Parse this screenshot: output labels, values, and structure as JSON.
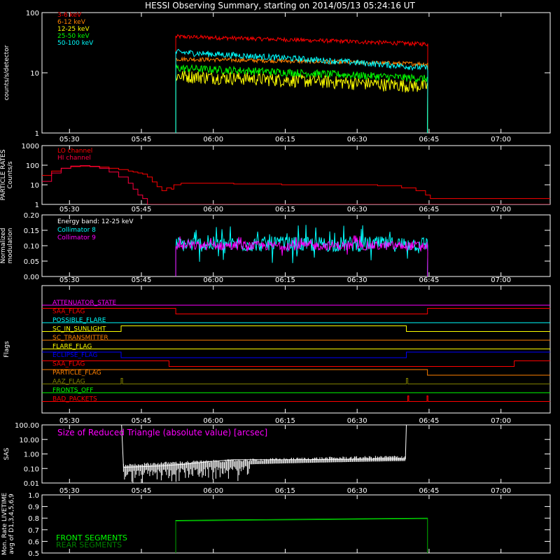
{
  "title": "HESSI Observing Summary, starting on 2014/05/13 05:24:16 UT",
  "time_ticks": [
    "05:30",
    "05:45",
    "06:00",
    "06:15",
    "06:30",
    "06:45",
    "07:00"
  ],
  "time_tick_minutes": [
    5.733,
    20.733,
    35.733,
    50.733,
    65.733,
    80.733,
    95.733
  ],
  "chart_data": [
    {
      "id": "count-rates",
      "type": "line",
      "ylabel": "counts/s/detector",
      "yscale": "log",
      "ylim": [
        1,
        100
      ],
      "ytick_labels": [
        "1",
        "10",
        "100"
      ],
      "xlim_minutes": [
        0,
        106
      ],
      "data_start_minute": 27.9,
      "data_end_minute": 80.4,
      "series": [
        {
          "name": "3-6 keV",
          "color": "#ff0000",
          "level_start": 40,
          "level_end": 30,
          "noise": 0.08
        },
        {
          "name": "6-12 keV",
          "color": "#ff8000",
          "level_start": 17,
          "level_end": 14,
          "noise": 0.08
        },
        {
          "name": "12-25 keV",
          "color": "#ffff00",
          "level_start": 9,
          "level_end": 6,
          "noise": 0.25
        },
        {
          "name": "25-50 keV",
          "color": "#00ff00",
          "level_start": 12,
          "level_end": 8,
          "noise": 0.15
        },
        {
          "name": "50-100 keV",
          "color": "#00ffff",
          "level_start": 22,
          "level_end": 12,
          "noise": 0.12
        }
      ]
    },
    {
      "id": "particle-rates",
      "type": "line",
      "ylabel": "PARTICLE RATES Counts/s",
      "yscale": "log",
      "ylim": [
        1,
        1000
      ],
      "ytick_labels": [
        "1",
        "10",
        "100",
        "1000"
      ],
      "xlim_minutes": [
        0,
        106
      ],
      "series": [
        {
          "name": "LO channel",
          "color": "#ff0000",
          "points": [
            [
              0,
              30
            ],
            [
              2,
              50
            ],
            [
              4,
              70
            ],
            [
              6,
              85
            ],
            [
              8,
              90
            ],
            [
              10,
              88
            ],
            [
              12,
              80
            ],
            [
              14,
              70
            ],
            [
              16,
              60
            ],
            [
              18,
              50
            ],
            [
              19,
              45
            ],
            [
              20,
              40
            ],
            [
              21,
              35
            ],
            [
              22,
              25
            ],
            [
              23,
              14
            ],
            [
              24,
              8
            ],
            [
              25,
              5
            ],
            [
              26,
              7
            ],
            [
              27,
              6
            ],
            [
              27.5,
              10
            ],
            [
              29,
              12
            ],
            [
              40,
              11
            ],
            [
              50,
              10
            ],
            [
              60,
              10
            ],
            [
              70,
              9
            ],
            [
              75,
              7
            ],
            [
              78,
              5
            ],
            [
              80,
              3
            ],
            [
              81,
              2
            ],
            [
              106,
              2
            ]
          ]
        },
        {
          "name": "HI channel",
          "color": "#ff0040",
          "points": [
            [
              0,
              15
            ],
            [
              2,
              40
            ],
            [
              4,
              70
            ],
            [
              6,
              90
            ],
            [
              8,
              95
            ],
            [
              10,
              85
            ],
            [
              12,
              70
            ],
            [
              14,
              45
            ],
            [
              16,
              25
            ],
            [
              18,
              12
            ],
            [
              19,
              6
            ],
            [
              20,
              3
            ],
            [
              21,
              2
            ],
            [
              22,
              1
            ],
            [
              106,
              1
            ]
          ]
        }
      ]
    },
    {
      "id": "modulation",
      "type": "line",
      "ylabel": "Normalized modulation",
      "ylim": [
        0,
        0.2
      ],
      "ytick_labels": [
        "0.00",
        "0.05",
        "0.10",
        "0.15",
        "0.20"
      ],
      "annotation": "Energy band: 12-25 keV",
      "xlim_minutes": [
        0,
        106
      ],
      "data_start_minute": 27.9,
      "data_end_minute": 80.4,
      "series": [
        {
          "name": "Collimator 8",
          "color": "#00ffff",
          "mean": 0.105,
          "noise": 0.025
        },
        {
          "name": "Collimator 9",
          "color": "#ff00ff",
          "mean": 0.1,
          "noise": 0.015
        }
      ]
    },
    {
      "id": "flags",
      "type": "line",
      "ylabel": "Flags",
      "xlim_minutes": [
        0,
        106
      ],
      "flags": [
        {
          "name": "ATTENUATOR_STATE",
          "color": "#ff00ff",
          "steps": [
            [
              0,
              0
            ]
          ]
        },
        {
          "name": "SAA_FLAG",
          "color": "#ff0000",
          "steps": [
            [
              0,
              1
            ],
            [
              27.9,
              0
            ],
            [
              80.4,
              1
            ]
          ]
        },
        {
          "name": "POSSIBLE_FLARE",
          "color": "#00ffff",
          "steps": [
            [
              0,
              0
            ]
          ]
        },
        {
          "name": "SC_IN_SUNLIGHT",
          "color": "#ffff00",
          "steps": [
            [
              0,
              0
            ],
            [
              16.5,
              1
            ],
            [
              76,
              0
            ]
          ]
        },
        {
          "name": "SC_TRANSMITTER",
          "color": "#ff8000",
          "steps": [
            [
              0,
              0
            ]
          ]
        },
        {
          "name": "FLARE_FLAG",
          "color": "#ffff00",
          "steps": [
            [
              0,
              0
            ]
          ]
        },
        {
          "name": "ECLIPSE_FLAG",
          "color": "#0000ff",
          "steps": [
            [
              0,
              1
            ],
            [
              16.5,
              0
            ],
            [
              76,
              1
            ]
          ]
        },
        {
          "name": "SAA_FLAG",
          "color": "#ff0000",
          "steps": [
            [
              0,
              1
            ],
            [
              26.5,
              0
            ],
            [
              98.5,
              1
            ]
          ]
        },
        {
          "name": "PARTICLE_FLAG",
          "color": "#ff8000",
          "steps": [
            [
              0,
              1
            ],
            [
              80.4,
              0
            ]
          ]
        },
        {
          "name": "AAZ_FLAG",
          "color": "#808000",
          "steps": [
            [
              0,
              0
            ],
            [
              16.5,
              1
            ],
            [
              16.8,
              0
            ],
            [
              76,
              1
            ],
            [
              76.3,
              0
            ]
          ]
        },
        {
          "name": "FRONTS_OFF",
          "color": "#00ff00",
          "steps": [
            [
              0,
              0
            ]
          ]
        },
        {
          "name": "BAD_PACKETS",
          "color": "#ff0000",
          "steps": [
            [
              0,
              0
            ],
            [
              76.3,
              1
            ],
            [
              76.5,
              0
            ],
            [
              80.3,
              1
            ],
            [
              80.5,
              0
            ]
          ]
        }
      ]
    },
    {
      "id": "sas",
      "type": "line",
      "ylabel": "SAS",
      "yscale": "log",
      "ylim": [
        0.01,
        100
      ],
      "ytick_labels": [
        "0.01",
        "0.10",
        "1.00",
        "10.00",
        "100.00"
      ],
      "annotation": "Size of Reduced Triangle (absolute value) [arcsec]",
      "xlim_minutes": [
        0,
        106
      ],
      "series": [
        {
          "name": "SAS",
          "color": "#ffffff",
          "points": [
            [
              16.6,
              100
            ],
            [
              17,
              0.12
            ],
            [
              25,
              0.15
            ],
            [
              30,
              0.2
            ],
            [
              35,
              0.3
            ],
            [
              40,
              0.4
            ],
            [
              50,
              0.4
            ],
            [
              60,
              0.42
            ],
            [
              70,
              0.45
            ],
            [
              75.8,
              0.45
            ],
            [
              76,
              100
            ]
          ]
        }
      ]
    },
    {
      "id": "livetime",
      "type": "line",
      "ylabel": "Mon. Rate LIVETIME avg of D1,3,4,5,6,9",
      "ylim": [
        0.5,
        1.0
      ],
      "ytick_labels": [
        "0.5",
        "0.6",
        "0.7",
        "0.8",
        "0.9",
        "1.0"
      ],
      "xlim_minutes": [
        0,
        106
      ],
      "series": [
        {
          "name": "FRONT SEGMENTS",
          "color": "#00ff00",
          "points": [
            [
              27.9,
              0.78
            ],
            [
              80.4,
              0.8
            ]
          ]
        },
        {
          "name": "REAR SEGMENTS",
          "color": "#008000",
          "points": [
            [
              27.9,
              0.775
            ],
            [
              80.4,
              0.795
            ]
          ]
        }
      ]
    }
  ]
}
